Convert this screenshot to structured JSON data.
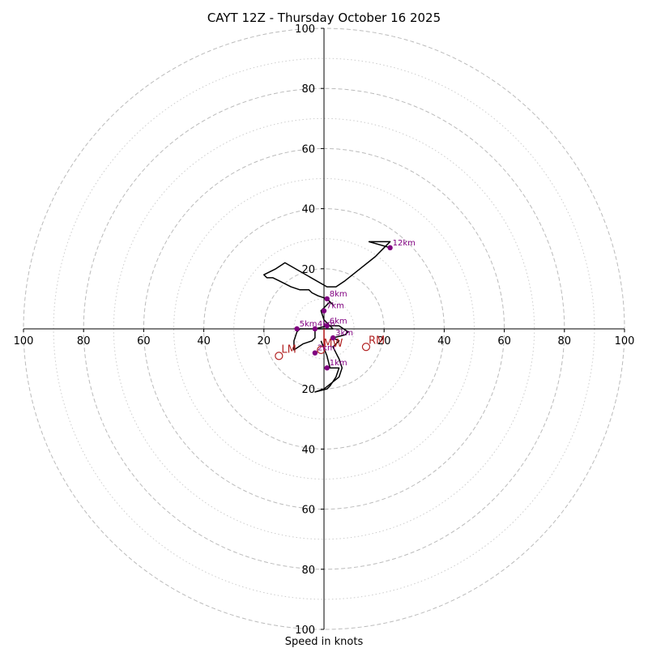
{
  "chart_data": {
    "type": "hodograph",
    "title": "CAYT 12Z - Thursday October 16 2025",
    "xlabel": "Speed in knots",
    "range": 100,
    "major_rings": [
      20,
      40,
      60,
      80,
      100
    ],
    "minor_rings": [
      10,
      30,
      50,
      70,
      90
    ],
    "x_ticks": [
      {
        "value": -100,
        "label": "100"
      },
      {
        "value": -80,
        "label": "80"
      },
      {
        "value": -60,
        "label": "60"
      },
      {
        "value": -40,
        "label": "40"
      },
      {
        "value": -20,
        "label": "20"
      },
      {
        "value": 20,
        "label": "20"
      },
      {
        "value": 40,
        "label": "40"
      },
      {
        "value": 60,
        "label": "60"
      },
      {
        "value": 80,
        "label": "80"
      },
      {
        "value": 100,
        "label": "100"
      }
    ],
    "y_ticks": [
      {
        "value": 100,
        "label": "100"
      },
      {
        "value": 80,
        "label": "80"
      },
      {
        "value": 60,
        "label": "60"
      },
      {
        "value": 40,
        "label": "40"
      },
      {
        "value": 20,
        "label": "20"
      },
      {
        "value": -20,
        "label": "20"
      },
      {
        "value": -40,
        "label": "40"
      },
      {
        "value": -60,
        "label": "60"
      },
      {
        "value": -80,
        "label": "80"
      },
      {
        "value": -100,
        "label": "100"
      }
    ],
    "wind_profile": [
      [
        -1,
        -4
      ],
      [
        1,
        -9
      ],
      [
        2,
        -13
      ],
      [
        5,
        -13
      ],
      [
        4,
        -16
      ],
      [
        2,
        -19
      ],
      [
        1,
        -20
      ],
      [
        -3,
        -21
      ],
      [
        0,
        -20
      ],
      [
        5,
        -16
      ],
      [
        6,
        -13
      ],
      [
        5,
        -10
      ],
      [
        4,
        -8
      ],
      [
        3,
        -6
      ],
      [
        4,
        -5
      ],
      [
        5,
        -4
      ],
      [
        3,
        -3
      ],
      [
        7,
        -2
      ],
      [
        8,
        -1
      ],
      [
        5,
        1
      ],
      [
        1,
        1
      ],
      [
        -3,
        0
      ],
      [
        -8,
        0
      ],
      [
        -9,
        -1
      ],
      [
        -10,
        -4
      ],
      [
        -10,
        -7
      ],
      [
        -7,
        -5
      ],
      [
        -4,
        -4
      ],
      [
        -3,
        -3
      ],
      [
        -3,
        0
      ],
      [
        0,
        0
      ],
      [
        3,
        0
      ],
      [
        0,
        3
      ],
      [
        -1,
        6
      ],
      [
        0,
        7
      ],
      [
        1,
        8
      ],
      [
        2,
        9
      ],
      [
        3,
        8
      ],
      [
        1,
        10
      ],
      [
        -2,
        11
      ],
      [
        -4,
        12
      ],
      [
        -5,
        13
      ],
      [
        -8,
        13
      ],
      [
        -11,
        14
      ],
      [
        -15,
        16
      ],
      [
        -17,
        17
      ],
      [
        -19,
        17
      ],
      [
        -20,
        18
      ],
      [
        -16,
        20
      ],
      [
        -13,
        22
      ],
      [
        1,
        14
      ],
      [
        4,
        14
      ],
      [
        7,
        16
      ],
      [
        12,
        20
      ],
      [
        17,
        24
      ],
      [
        20,
        27
      ],
      [
        22,
        29
      ],
      [
        15,
        29
      ],
      [
        22,
        27
      ]
    ],
    "height_markers": [
      {
        "label": "1km",
        "u": 1,
        "v": -13
      },
      {
        "label": "2km",
        "u": -3,
        "v": -8
      },
      {
        "label": "3km",
        "u": 3,
        "v": -3
      },
      {
        "label": "4km",
        "u": -3,
        "v": 0
      },
      {
        "label": "5km",
        "u": -9,
        "v": 0
      },
      {
        "label": "6km",
        "u": 1,
        "v": 1
      },
      {
        "label": "7km",
        "u": 0,
        "v": 6
      },
      {
        "label": "8km",
        "u": 1,
        "v": 10
      },
      {
        "label": "12km",
        "u": 22,
        "v": 27
      }
    ],
    "storm_motion": [
      {
        "label": "RM",
        "u": 14,
        "v": -6
      },
      {
        "label": "LM",
        "u": -15,
        "v": -9
      },
      {
        "label": "MW",
        "u": -1,
        "v": -7
      }
    ],
    "mean_vector": {
      "u": 0,
      "v": -7
    }
  },
  "colors": {
    "profile": "#000000",
    "marker": "#800080",
    "storm": "#b22222",
    "ring": "#bbbbbb"
  }
}
